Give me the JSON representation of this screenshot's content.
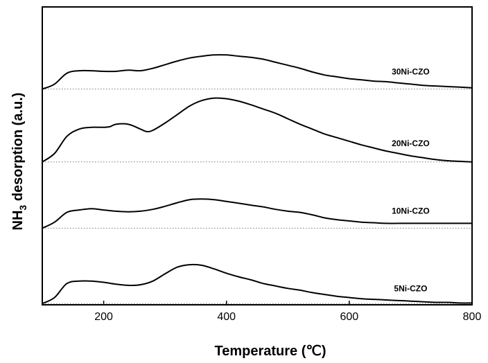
{
  "chart_data": {
    "type": "line",
    "xlabel": "Temperature (℃)",
    "ylabel_main": "NH",
    "ylabel_sub": "3",
    "ylabel_rest": " desorption (a.u.)",
    "xlim": [
      100,
      800
    ],
    "x_ticks": [
      200,
      400,
      600,
      800
    ],
    "x_tick_labels": [
      "200",
      "400",
      "600",
      "800"
    ],
    "ylim": [
      0,
      4.9
    ],
    "grid": false,
    "legend": "none",
    "line_color": "#000000",
    "baseline_style": "dotted",
    "series": [
      {
        "name": "30Ni-CZO",
        "offset": 3.55,
        "x": [
          100,
          120,
          140,
          160,
          180,
          200,
          220,
          240,
          260,
          280,
          300,
          320,
          340,
          360,
          380,
          400,
          420,
          440,
          460,
          480,
          500,
          520,
          540,
          560,
          580,
          600,
          620,
          640,
          660,
          680,
          700,
          720,
          740,
          760,
          780,
          800
        ],
        "y": [
          0.0,
          0.08,
          0.26,
          0.3,
          0.3,
          0.29,
          0.29,
          0.31,
          0.3,
          0.34,
          0.4,
          0.46,
          0.51,
          0.54,
          0.56,
          0.56,
          0.54,
          0.52,
          0.49,
          0.44,
          0.39,
          0.34,
          0.28,
          0.23,
          0.2,
          0.17,
          0.15,
          0.13,
          0.12,
          0.1,
          0.08,
          0.06,
          0.05,
          0.04,
          0.03,
          0.02
        ]
      },
      {
        "name": "20Ni-CZO",
        "offset": 2.35,
        "x": [
          100,
          120,
          140,
          160,
          180,
          200,
          210,
          220,
          240,
          260,
          270,
          280,
          300,
          320,
          340,
          360,
          380,
          400,
          420,
          440,
          460,
          480,
          500,
          520,
          540,
          560,
          580,
          600,
          620,
          640,
          660,
          680,
          700,
          720,
          740,
          760,
          780,
          800
        ],
        "y": [
          0.0,
          0.14,
          0.42,
          0.54,
          0.57,
          0.57,
          0.58,
          0.62,
          0.62,
          0.54,
          0.5,
          0.52,
          0.64,
          0.78,
          0.92,
          1.01,
          1.05,
          1.04,
          1.0,
          0.94,
          0.87,
          0.8,
          0.71,
          0.62,
          0.54,
          0.46,
          0.4,
          0.34,
          0.28,
          0.23,
          0.18,
          0.14,
          0.1,
          0.07,
          0.04,
          0.02,
          0.01,
          0.0
        ]
      },
      {
        "name": "10Ni-CZO",
        "offset": 1.26,
        "x": [
          100,
          120,
          140,
          160,
          180,
          200,
          220,
          240,
          260,
          280,
          300,
          320,
          340,
          360,
          380,
          400,
          420,
          440,
          460,
          480,
          500,
          520,
          540,
          560,
          580,
          600,
          620,
          640,
          660,
          680,
          700,
          720,
          740,
          760,
          780,
          800
        ],
        "y": [
          0.0,
          0.1,
          0.26,
          0.3,
          0.32,
          0.3,
          0.28,
          0.27,
          0.28,
          0.31,
          0.36,
          0.42,
          0.47,
          0.48,
          0.47,
          0.44,
          0.41,
          0.38,
          0.35,
          0.31,
          0.28,
          0.26,
          0.22,
          0.17,
          0.14,
          0.12,
          0.1,
          0.09,
          0.08,
          0.08,
          0.08,
          0.08,
          0.08,
          0.08,
          0.08,
          0.08
        ]
      },
      {
        "name": "5Ni-CZO",
        "offset": 0.02,
        "x": [
          100,
          120,
          140,
          160,
          180,
          200,
          220,
          240,
          260,
          280,
          300,
          320,
          340,
          360,
          380,
          400,
          420,
          440,
          460,
          480,
          500,
          520,
          540,
          560,
          580,
          600,
          620,
          640,
          660,
          680,
          700,
          720,
          740,
          760,
          780,
          800
        ],
        "y": [
          0.0,
          0.1,
          0.33,
          0.37,
          0.37,
          0.35,
          0.32,
          0.3,
          0.31,
          0.37,
          0.49,
          0.6,
          0.64,
          0.63,
          0.57,
          0.5,
          0.44,
          0.39,
          0.33,
          0.29,
          0.25,
          0.22,
          0.18,
          0.15,
          0.12,
          0.1,
          0.08,
          0.07,
          0.06,
          0.05,
          0.04,
          0.03,
          0.02,
          0.02,
          0.01,
          0.01
        ]
      }
    ]
  }
}
